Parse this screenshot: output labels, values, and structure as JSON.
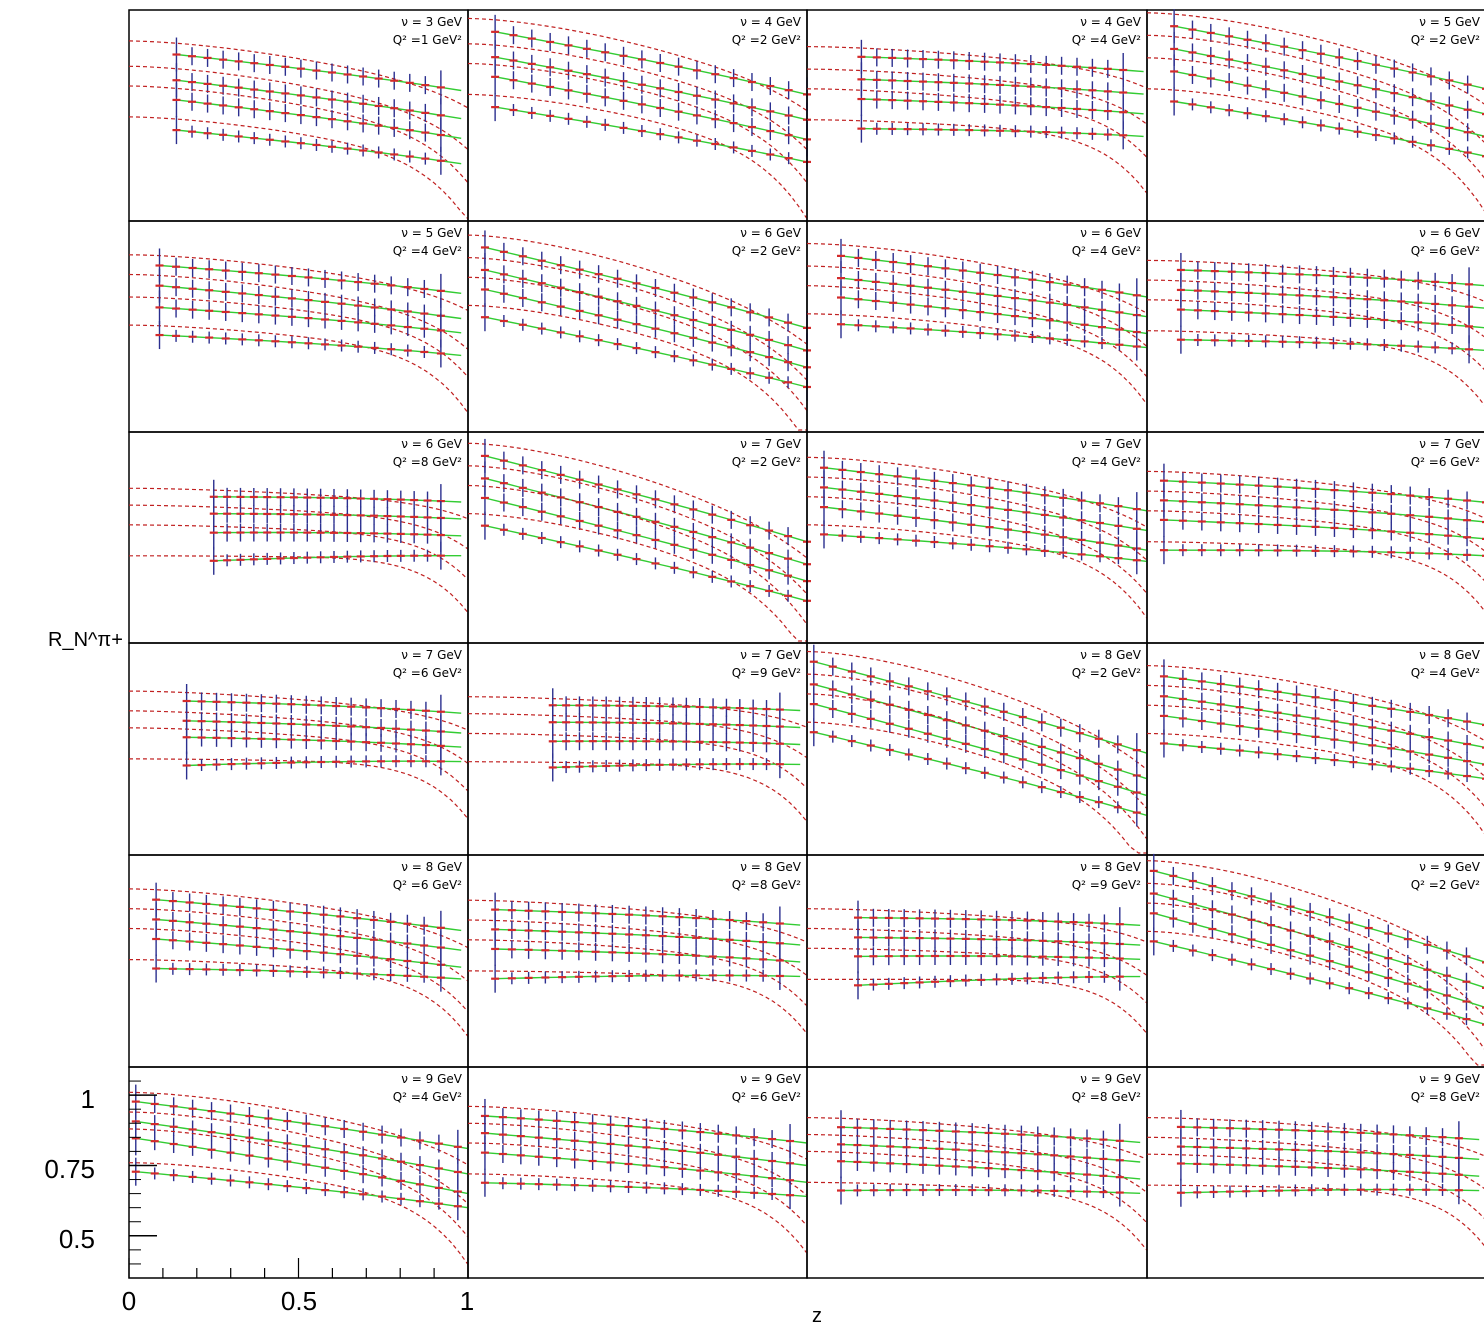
{
  "chart_data": {
    "type": "scatter",
    "layout": "grid 6 rows x 4 columns of panels, shared axes",
    "xlabel": "z",
    "ylabel": "R_N^π+",
    "x_ticks": [
      "0",
      "0.5",
      "1"
    ],
    "y_ticks": [
      "1",
      "0.75",
      "0.5"
    ],
    "xlim": [
      0,
      1
    ],
    "ylim": [
      0.35,
      1.1
    ],
    "grid": false,
    "series_styles": [
      {
        "role": "data points with error bars",
        "color": "#d42a2a",
        "errorbar_color": "#2b2f8f"
      },
      {
        "role": "model curve (fit range)",
        "color": "#33cc33"
      },
      {
        "role": "model curve (extrapolation)",
        "color": "#c02020",
        "dash": "dashed"
      }
    ],
    "panels": [
      {
        "nu": "ν = 3 GeV",
        "q2": "Q² =1 GeV²",
        "xmin": 0.14,
        "xmax": 0.92,
        "levels": [
          [
            0.96,
            0.83
          ],
          [
            0.87,
            0.73
          ],
          [
            0.8,
            0.66
          ],
          [
            0.69,
            0.57
          ]
        ]
      },
      {
        "nu": "ν = 4 GeV",
        "q2": "Q² =2 GeV²",
        "xmin": 0.08,
        "xmax": 1.0,
        "levels": [
          [
            1.04,
            0.82
          ],
          [
            0.95,
            0.73
          ],
          [
            0.88,
            0.66
          ],
          [
            0.77,
            0.58
          ]
        ]
      },
      {
        "nu": "ν = 4 GeV",
        "q2": "Q² =4 GeV²",
        "xmin": 0.16,
        "xmax": 0.93,
        "levels": [
          [
            0.94,
            0.9
          ],
          [
            0.86,
            0.82
          ],
          [
            0.79,
            0.75
          ],
          [
            0.68,
            0.67
          ]
        ]
      },
      {
        "nu": "ν = 5 GeV",
        "q2": "Q² =2 GeV²",
        "xmin": 0.08,
        "xmax": 1.0,
        "levels": [
          [
            1.06,
            0.84
          ],
          [
            0.98,
            0.75
          ],
          [
            0.9,
            0.67
          ],
          [
            0.79,
            0.6
          ]
        ]
      },
      {
        "nu": "ν = 5 GeV",
        "q2": "Q² =4 GeV²",
        "xmin": 0.09,
        "xmax": 0.92,
        "levels": [
          [
            0.95,
            0.86
          ],
          [
            0.88,
            0.77
          ],
          [
            0.8,
            0.72
          ],
          [
            0.7,
            0.64
          ]
        ]
      },
      {
        "nu": "ν = 6 GeV",
        "q2": "Q² =2 GeV²",
        "xmin": 0.05,
        "xmax": 1.0,
        "levels": [
          [
            1.02,
            0.74
          ],
          [
            0.94,
            0.66
          ],
          [
            0.87,
            0.6
          ],
          [
            0.77,
            0.53
          ]
        ]
      },
      {
        "nu": "ν = 6 GeV",
        "q2": "Q² =4 GeV²",
        "xmin": 0.1,
        "xmax": 0.97,
        "levels": [
          [
            0.99,
            0.85
          ],
          [
            0.91,
            0.78
          ],
          [
            0.84,
            0.72
          ],
          [
            0.74,
            0.67
          ]
        ]
      },
      {
        "nu": "ν = 6 GeV",
        "q2": "Q² =6 GeV²",
        "xmin": 0.1,
        "xmax": 0.95,
        "levels": [
          [
            0.93,
            0.89
          ],
          [
            0.86,
            0.81
          ],
          [
            0.79,
            0.74
          ],
          [
            0.68,
            0.66
          ]
        ]
      },
      {
        "nu": "ν = 6 GeV",
        "q2": "Q² =8 GeV²",
        "xmin": 0.25,
        "xmax": 0.92,
        "levels": [
          [
            0.87,
            0.87
          ],
          [
            0.81,
            0.81
          ],
          [
            0.74,
            0.75
          ],
          [
            0.63,
            0.68
          ]
        ]
      },
      {
        "nu": "ν = 7 GeV",
        "q2": "Q² =2 GeV²",
        "xmin": 0.05,
        "xmax": 1.0,
        "levels": [
          [
            1.03,
            0.73
          ],
          [
            0.95,
            0.65
          ],
          [
            0.88,
            0.59
          ],
          [
            0.78,
            0.52
          ]
        ]
      },
      {
        "nu": "ν = 7 GeV",
        "q2": "Q² =4 GeV²",
        "xmin": 0.05,
        "xmax": 0.97,
        "levels": [
          [
            0.98,
            0.84
          ],
          [
            0.91,
            0.77
          ],
          [
            0.84,
            0.7
          ],
          [
            0.74,
            0.66
          ]
        ]
      },
      {
        "nu": "ν = 7 GeV",
        "q2": "Q² =6 GeV²",
        "xmin": 0.05,
        "xmax": 1.0,
        "levels": [
          [
            0.93,
            0.87
          ],
          [
            0.86,
            0.8
          ],
          [
            0.79,
            0.74
          ],
          [
            0.68,
            0.68
          ]
        ]
      },
      {
        "nu": "ν = 7 GeV",
        "q2": "Q² =6 GeV²",
        "xmin": 0.17,
        "xmax": 0.92,
        "levels": [
          [
            0.9,
            0.87
          ],
          [
            0.83,
            0.8
          ],
          [
            0.77,
            0.75
          ],
          [
            0.66,
            0.7
          ]
        ]
      },
      {
        "nu": "ν = 7 GeV",
        "q2": "Q² =9 GeV²",
        "xmin": 0.25,
        "xmax": 0.92,
        "levels": [
          [
            0.88,
            0.88
          ],
          [
            0.82,
            0.82
          ],
          [
            0.75,
            0.76
          ],
          [
            0.65,
            0.69
          ]
        ]
      },
      {
        "nu": "ν = 8 GeV",
        "q2": "Q² =2 GeV²",
        "xmin": 0.02,
        "xmax": 0.97,
        "levels": [
          [
            1.04,
            0.73
          ],
          [
            0.96,
            0.64
          ],
          [
            0.89,
            0.58
          ],
          [
            0.79,
            0.51
          ]
        ]
      },
      {
        "nu": "ν = 8 GeV",
        "q2": "Q² =4 GeV²",
        "xmin": 0.05,
        "xmax": 1.0,
        "levels": [
          [
            0.99,
            0.83
          ],
          [
            0.92,
            0.75
          ],
          [
            0.85,
            0.69
          ],
          [
            0.75,
            0.64
          ]
        ]
      },
      {
        "nu": "ν = 8 GeV",
        "q2": "Q² =6 GeV²",
        "xmin": 0.08,
        "xmax": 0.92,
        "levels": [
          [
            0.95,
            0.85
          ],
          [
            0.88,
            0.78
          ],
          [
            0.81,
            0.72
          ],
          [
            0.7,
            0.68
          ]
        ]
      },
      {
        "nu": "ν = 8 GeV",
        "q2": "Q² =8 GeV²",
        "xmin": 0.08,
        "xmax": 0.92,
        "levels": [
          [
            0.91,
            0.87
          ],
          [
            0.84,
            0.8
          ],
          [
            0.77,
            0.74
          ],
          [
            0.66,
            0.69
          ]
        ]
      },
      {
        "nu": "ν = 8 GeV",
        "q2": "Q² =9 GeV²",
        "xmin": 0.15,
        "xmax": 0.92,
        "levels": [
          [
            0.88,
            0.87
          ],
          [
            0.81,
            0.8
          ],
          [
            0.74,
            0.75
          ],
          [
            0.63,
            0.69
          ]
        ]
      },
      {
        "nu": "ν = 9 GeV",
        "q2": "Q² =2 GeV²",
        "xmin": 0.02,
        "xmax": 1.0,
        "levels": [
          [
            1.05,
            0.74
          ],
          [
            0.97,
            0.65
          ],
          [
            0.9,
            0.58
          ],
          [
            0.8,
            0.52
          ]
        ]
      },
      {
        "nu": "ν = 9 GeV",
        "q2": "Q² =4 GeV²",
        "xmin": 0.02,
        "xmax": 0.97,
        "levels": [
          [
            0.98,
            0.83
          ],
          [
            0.91,
            0.74
          ],
          [
            0.85,
            0.67
          ],
          [
            0.73,
            0.62
          ]
        ]
      },
      {
        "nu": "ν = 9 GeV",
        "q2": "Q² =6 GeV²",
        "xmin": 0.05,
        "xmax": 0.95,
        "levels": [
          [
            0.93,
            0.85
          ],
          [
            0.87,
            0.77
          ],
          [
            0.8,
            0.71
          ],
          [
            0.69,
            0.66
          ]
        ]
      },
      {
        "nu": "ν = 9 GeV",
        "q2": "Q² =8 GeV²",
        "xmin": 0.1,
        "xmax": 0.92,
        "levels": [
          [
            0.89,
            0.85
          ],
          [
            0.83,
            0.78
          ],
          [
            0.77,
            0.72
          ],
          [
            0.66,
            0.67
          ]
        ]
      },
      {
        "nu": "ν = 9 GeV",
        "q2": "Q² =8 GeV²",
        "xmin": 0.1,
        "xmax": 0.92,
        "levels": [
          [
            0.89,
            0.86
          ],
          [
            0.82,
            0.79
          ],
          [
            0.76,
            0.73
          ],
          [
            0.65,
            0.68
          ]
        ]
      }
    ]
  }
}
